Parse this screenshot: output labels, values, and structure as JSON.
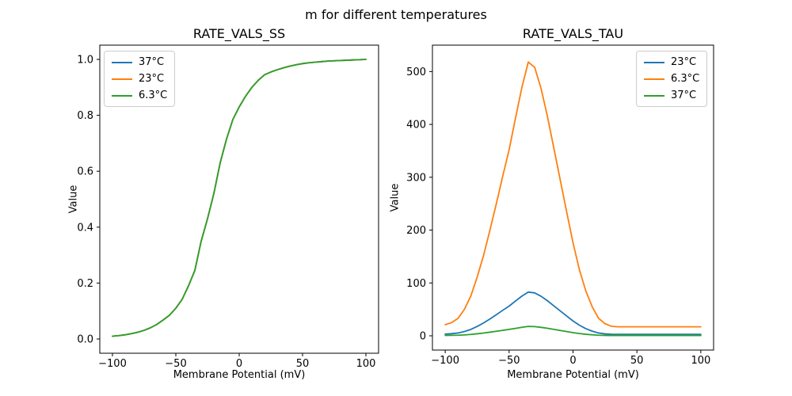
{
  "figure": {
    "suptitle": "m for different temperatures",
    "background": "#ffffff",
    "text_color": "#000000"
  },
  "colors": {
    "matplotlib_blue": "#1f77b4",
    "matplotlib_orange": "#ff7f0e",
    "matplotlib_green": "#2ca02c"
  },
  "chart_data": [
    {
      "type": "line",
      "title": "RATE_VALS_SS",
      "xlabel": "Membrane Potential (mV)",
      "ylabel": "Value",
      "xlim": [
        -110,
        110
      ],
      "ylim": [
        -0.051,
        1.051
      ],
      "xticks": [
        -100,
        -50,
        0,
        50,
        100
      ],
      "xtick_labels": [
        "−100",
        "−50",
        "0",
        "50",
        "100"
      ],
      "yticks": [
        0.0,
        0.2,
        0.4,
        0.6,
        0.8,
        1.0
      ],
      "ytick_labels": [
        "0.0",
        "0.2",
        "0.4",
        "0.6",
        "0.8",
        "1.0"
      ],
      "grid": false,
      "legend": {
        "position": "upper-left",
        "entries": [
          {
            "label": "37°C",
            "color": "#1f77b4"
          },
          {
            "label": "23°C",
            "color": "#ff7f0e"
          },
          {
            "label": "6.3°C",
            "color": "#2ca02c"
          }
        ]
      },
      "x": [
        -100,
        -95,
        -90,
        -85,
        -80,
        -75,
        -70,
        -65,
        -60,
        -55,
        -50,
        -45,
        -40,
        -35,
        -30,
        -25,
        -20,
        -15,
        -10,
        -5,
        0,
        5,
        10,
        15,
        20,
        25,
        30,
        35,
        40,
        45,
        50,
        55,
        60,
        65,
        70,
        75,
        80,
        85,
        90,
        95,
        100
      ],
      "series": [
        {
          "name": "37°C",
          "color": "#1f77b4",
          "values": [
            0.01,
            0.012,
            0.015,
            0.019,
            0.024,
            0.031,
            0.04,
            0.052,
            0.068,
            0.085,
            0.11,
            0.142,
            0.19,
            0.245,
            0.35,
            0.43,
            0.52,
            0.63,
            0.715,
            0.785,
            0.83,
            0.868,
            0.9,
            0.925,
            0.945,
            0.955,
            0.963,
            0.97,
            0.976,
            0.981,
            0.985,
            0.988,
            0.99,
            0.992,
            0.994,
            0.995,
            0.996,
            0.997,
            0.998,
            0.999,
            1.0
          ]
        },
        {
          "name": "23°C",
          "color": "#ff7f0e",
          "values": [
            0.01,
            0.012,
            0.015,
            0.019,
            0.024,
            0.031,
            0.04,
            0.052,
            0.068,
            0.085,
            0.11,
            0.142,
            0.19,
            0.245,
            0.35,
            0.43,
            0.52,
            0.63,
            0.715,
            0.785,
            0.83,
            0.868,
            0.9,
            0.925,
            0.945,
            0.955,
            0.963,
            0.97,
            0.976,
            0.981,
            0.985,
            0.988,
            0.99,
            0.992,
            0.994,
            0.995,
            0.996,
            0.997,
            0.998,
            0.999,
            1.0
          ]
        },
        {
          "name": "6.3°C",
          "color": "#2ca02c",
          "values": [
            0.01,
            0.012,
            0.015,
            0.019,
            0.024,
            0.031,
            0.04,
            0.052,
            0.068,
            0.085,
            0.11,
            0.142,
            0.19,
            0.245,
            0.35,
            0.43,
            0.52,
            0.63,
            0.715,
            0.785,
            0.83,
            0.868,
            0.9,
            0.925,
            0.945,
            0.955,
            0.963,
            0.97,
            0.976,
            0.981,
            0.985,
            0.988,
            0.99,
            0.992,
            0.994,
            0.995,
            0.996,
            0.997,
            0.998,
            0.999,
            1.0
          ]
        }
      ]
    },
    {
      "type": "line",
      "title": "RATE_VALS_TAU",
      "xlabel": "Membrane Potential (mV)",
      "ylabel": "Value",
      "xlim": [
        -110,
        110
      ],
      "ylim": [
        -27,
        550
      ],
      "xticks": [
        -100,
        -50,
        0,
        50,
        100
      ],
      "xtick_labels": [
        "−100",
        "−50",
        "0",
        "50",
        "100"
      ],
      "yticks": [
        0,
        100,
        200,
        300,
        400,
        500
      ],
      "ytick_labels": [
        "0",
        "100",
        "200",
        "300",
        "400",
        "500"
      ],
      "grid": false,
      "legend": {
        "position": "upper-right",
        "entries": [
          {
            "label": "23°C",
            "color": "#1f77b4"
          },
          {
            "label": "6.3°C",
            "color": "#ff7f0e"
          },
          {
            "label": "37°C",
            "color": "#2ca02c"
          }
        ]
      },
      "x": [
        -100,
        -95,
        -90,
        -85,
        -80,
        -75,
        -70,
        -65,
        -60,
        -55,
        -50,
        -45,
        -40,
        -35,
        -30,
        -25,
        -20,
        -15,
        -10,
        -5,
        0,
        5,
        10,
        15,
        20,
        25,
        30,
        35,
        40,
        45,
        50,
        55,
        60,
        65,
        70,
        75,
        80,
        85,
        90,
        95,
        100
      ],
      "series": [
        {
          "name": "23°C",
          "color": "#1f77b4",
          "values": [
            3.4,
            4.0,
            5.3,
            8.0,
            12.0,
            17.7,
            24.3,
            31.9,
            39.9,
            48.2,
            56.2,
            65.8,
            75.1,
            82.7,
            81.2,
            74.8,
            66.3,
            56.7,
            47.1,
            37.5,
            28.1,
            20.0,
            13.6,
            8.8,
            5.3,
            3.7,
            2.9,
            2.7,
            2.7,
            2.7,
            2.7,
            2.7,
            2.7,
            2.7,
            2.7,
            2.7,
            2.7,
            2.7,
            2.7,
            2.7,
            2.7
          ]
        },
        {
          "name": "6.3°C",
          "color": "#ff7f0e",
          "values": [
            21,
            25,
            33,
            50,
            75,
            111,
            152,
            200,
            250,
            302,
            352,
            412,
            470,
            518,
            508,
            468,
            415,
            355,
            295,
            235,
            176,
            125,
            85,
            55,
            33,
            23,
            18,
            17,
            17,
            17,
            17,
            17,
            17,
            17,
            17,
            17,
            17,
            17,
            17,
            17,
            17
          ]
        },
        {
          "name": "37°C",
          "color": "#2ca02c",
          "values": [
            0.7,
            0.9,
            1.1,
            1.7,
            2.6,
            3.8,
            5.2,
            6.8,
            8.6,
            10.3,
            12.1,
            14.1,
            16.1,
            17.7,
            17.4,
            16.0,
            14.2,
            12.2,
            10.1,
            8.0,
            6.0,
            4.3,
            2.9,
            1.9,
            1.1,
            0.8,
            0.6,
            0.6,
            0.6,
            0.6,
            0.6,
            0.6,
            0.6,
            0.6,
            0.6,
            0.6,
            0.6,
            0.6,
            0.6,
            0.6,
            0.6
          ]
        }
      ]
    }
  ]
}
